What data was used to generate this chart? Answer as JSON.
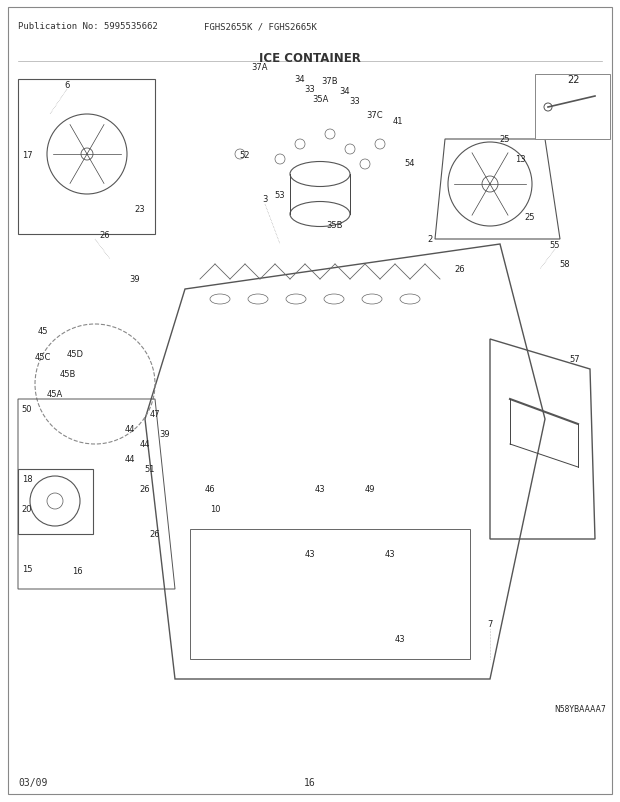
{
  "pub_no": "Publication No: 5995535662",
  "model": "FGHS2655K / FGHS2665K",
  "title": "ICE CONTAINER",
  "date": "03/09",
  "page": "16",
  "doc_id": "N58YBAAAA7",
  "bg_color": "#ffffff",
  "border_color": "#cccccc",
  "text_color": "#333333",
  "diagram_color": "#555555",
  "figsize": [
    6.2,
    8.03
  ],
  "dpi": 100
}
